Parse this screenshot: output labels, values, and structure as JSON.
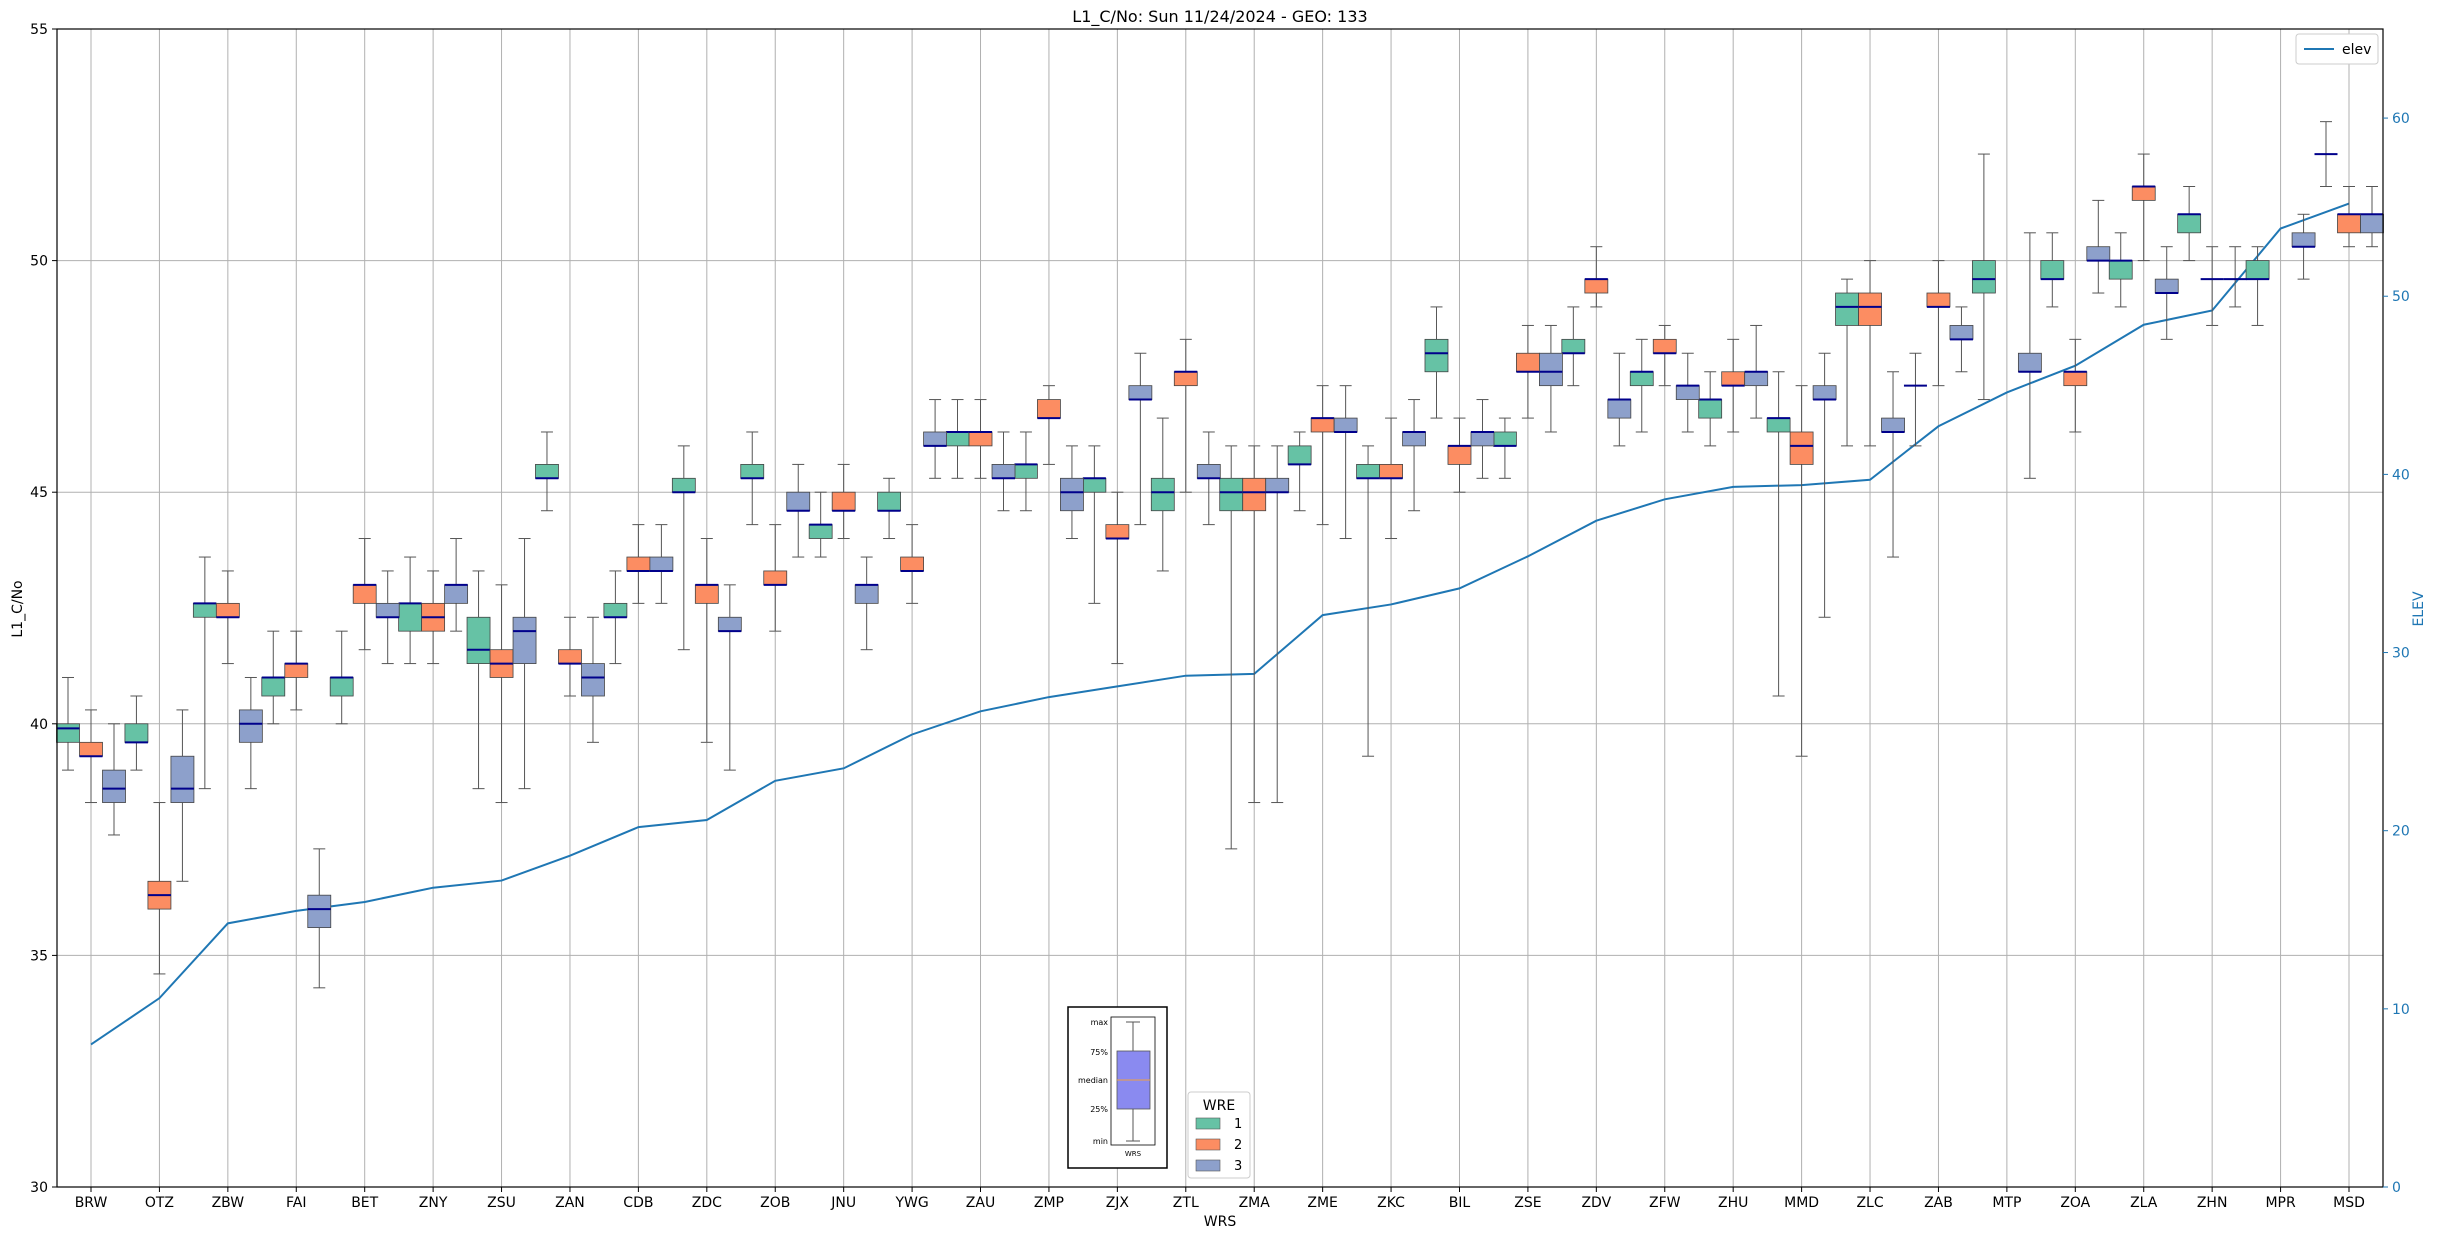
{
  "chart_data": {
    "type": "box",
    "title": "L1_C/No: Sun 11/24/2024 - GEO: 133",
    "xlabel": "WRS",
    "ylabel": "L1_C/No",
    "y2label": "ELEV",
    "ylim": [
      30,
      55
    ],
    "y2lim": [
      0,
      65
    ],
    "yticks": [
      30,
      35,
      40,
      45,
      50,
      55
    ],
    "y2ticks": [
      0,
      10,
      20,
      30,
      40,
      50,
      60
    ],
    "grid": true,
    "categories": [
      "BRW",
      "OTZ",
      "ZBW",
      "FAI",
      "BET",
      "ZNY",
      "ZSU",
      "ZAN",
      "CDB",
      "ZDC",
      "ZOB",
      "JNU",
      "YWG",
      "ZAU",
      "ZMP",
      "ZJX",
      "ZTL",
      "ZMA",
      "ZME",
      "ZKC",
      "BIL",
      "ZSE",
      "ZDV",
      "ZFW",
      "ZHU",
      "MMD",
      "ZLC",
      "ZAB",
      "MTP",
      "ZOA",
      "ZLA",
      "ZHN",
      "MPR",
      "MSD"
    ],
    "legend": {
      "title": "WRE",
      "position": "bottom-center",
      "entries": [
        {
          "label": "1",
          "color": "#66c2a5"
        },
        {
          "label": "2",
          "color": "#fc8d62"
        },
        {
          "label": "3",
          "color": "#8da0cb"
        }
      ]
    },
    "line_legend": {
      "label": "elev",
      "position": "top-right",
      "color": "#1f77b4"
    },
    "box_key": {
      "labels": {
        "max": "max",
        "q3": "75%",
        "median": "median",
        "q1": "25%",
        "min": "min",
        "x": "WRS"
      }
    },
    "series": [
      {
        "name": "1",
        "color": "#66c2a5",
        "boxes": [
          {
            "cat": "BRW",
            "min": 39.0,
            "q1": 39.6,
            "med": 39.9,
            "q3": 40.0,
            "max": 41.0
          },
          {
            "cat": "OTZ",
            "min": 39.0,
            "q1": 39.6,
            "med": 39.6,
            "q3": 40.0,
            "max": 40.6
          },
          {
            "cat": "ZBW",
            "min": 38.6,
            "q1": 42.3,
            "med": 42.6,
            "q3": 42.6,
            "max": 43.6
          },
          {
            "cat": "FAI",
            "min": 40.0,
            "q1": 40.6,
            "med": 41.0,
            "q3": 41.0,
            "max": 42.0
          },
          {
            "cat": "BET",
            "min": 40.0,
            "q1": 40.6,
            "med": 41.0,
            "q3": 41.0,
            "max": 42.0
          },
          {
            "cat": "ZNY",
            "min": 41.3,
            "q1": 42.0,
            "med": 42.6,
            "q3": 42.6,
            "max": 43.6
          },
          {
            "cat": "ZSU",
            "min": 38.6,
            "q1": 41.3,
            "med": 41.6,
            "q3": 42.3,
            "max": 43.3
          },
          {
            "cat": "ZAN",
            "min": 44.6,
            "q1": 45.3,
            "med": 45.3,
            "q3": 45.6,
            "max": 46.3
          },
          {
            "cat": "CDB",
            "min": 41.3,
            "q1": 42.3,
            "med": 42.3,
            "q3": 42.6,
            "max": 43.3
          },
          {
            "cat": "ZDC",
            "min": 41.6,
            "q1": 45.0,
            "med": 45.0,
            "q3": 45.3,
            "max": 46.0
          },
          {
            "cat": "ZOB",
            "min": 44.3,
            "q1": 45.3,
            "med": 45.3,
            "q3": 45.6,
            "max": 46.3
          },
          {
            "cat": "JNU",
            "min": 43.6,
            "q1": 44.0,
            "med": 44.3,
            "q3": 44.3,
            "max": 45.0
          },
          {
            "cat": "YWG",
            "min": 44.0,
            "q1": 44.6,
            "med": 44.6,
            "q3": 45.0,
            "max": 45.3
          },
          {
            "cat": "ZAU",
            "min": 45.3,
            "q1": 46.0,
            "med": 46.3,
            "q3": 46.3,
            "max": 47.0
          },
          {
            "cat": "ZMP",
            "min": 44.6,
            "q1": 45.3,
            "med": 45.6,
            "q3": 45.6,
            "max": 46.3
          },
          {
            "cat": "ZJX",
            "min": 42.6,
            "q1": 45.0,
            "med": 45.3,
            "q3": 45.3,
            "max": 46.0
          },
          {
            "cat": "ZTL",
            "min": 43.3,
            "q1": 44.6,
            "med": 45.0,
            "q3": 45.3,
            "max": 46.6
          },
          {
            "cat": "ZMA",
            "min": 37.3,
            "q1": 44.6,
            "med": 45.0,
            "q3": 45.3,
            "max": 46.0
          },
          {
            "cat": "ZME",
            "min": 44.6,
            "q1": 45.6,
            "med": 45.6,
            "q3": 46.0,
            "max": 46.3
          },
          {
            "cat": "ZKC",
            "min": 39.3,
            "q1": 45.3,
            "med": 45.3,
            "q3": 45.6,
            "max": 46.0
          },
          {
            "cat": "BIL",
            "min": 46.6,
            "q1": 47.6,
            "med": 48.0,
            "q3": 48.3,
            "max": 49.0
          },
          {
            "cat": "ZSE",
            "min": 45.3,
            "q1": 46.0,
            "med": 46.0,
            "q3": 46.3,
            "max": 46.6
          },
          {
            "cat": "ZDV",
            "min": 47.3,
            "q1": 48.0,
            "med": 48.0,
            "q3": 48.3,
            "max": 49.0
          },
          {
            "cat": "ZFW",
            "min": 46.3,
            "q1": 47.3,
            "med": 47.6,
            "q3": 47.6,
            "max": 48.3
          },
          {
            "cat": "ZHU",
            "min": 46.0,
            "q1": 46.6,
            "med": 47.0,
            "q3": 47.0,
            "max": 47.6
          },
          {
            "cat": "MMD",
            "min": 40.6,
            "q1": 46.3,
            "med": 46.6,
            "q3": 46.6,
            "max": 47.6
          },
          {
            "cat": "ZLC",
            "min": 46.0,
            "q1": 48.6,
            "med": 49.0,
            "q3": 49.3,
            "max": 49.6
          },
          {
            "cat": "MTP",
            "min": 47.0,
            "q1": 49.3,
            "med": 49.6,
            "q3": 50.0,
            "max": 52.3
          },
          {
            "cat": "ZOA",
            "min": 49.0,
            "q1": 49.6,
            "med": 49.6,
            "q3": 50.0,
            "max": 50.6
          },
          {
            "cat": "ZLA",
            "min": 49.0,
            "q1": 49.6,
            "med": 50.0,
            "q3": 50.0,
            "max": 50.6
          },
          {
            "cat": "ZHN",
            "min": 50.0,
            "q1": 50.6,
            "med": 51.0,
            "q3": 51.0,
            "max": 51.6
          },
          {
            "cat": "MPR",
            "min": 48.6,
            "q1": 49.6,
            "med": 49.6,
            "q3": 50.0,
            "max": 50.3
          }
        ]
      },
      {
        "name": "2",
        "color": "#fc8d62",
        "boxes": [
          {
            "cat": "BRW",
            "min": 38.3,
            "q1": 39.3,
            "med": 39.3,
            "q3": 39.6,
            "max": 40.3
          },
          {
            "cat": "OTZ",
            "min": 34.6,
            "q1": 36.0,
            "med": 36.3,
            "q3": 36.6,
            "max": 38.3
          },
          {
            "cat": "ZBW",
            "min": 41.3,
            "q1": 42.3,
            "med": 42.3,
            "q3": 42.6,
            "max": 43.3
          },
          {
            "cat": "FAI",
            "min": 40.3,
            "q1": 41.0,
            "med": 41.3,
            "q3": 41.3,
            "max": 42.0
          },
          {
            "cat": "BET",
            "min": 41.6,
            "q1": 42.6,
            "med": 43.0,
            "q3": 43.0,
            "max": 44.0
          },
          {
            "cat": "ZNY",
            "min": 41.3,
            "q1": 42.0,
            "med": 42.3,
            "q3": 42.6,
            "max": 43.3
          },
          {
            "cat": "ZSU",
            "min": 38.3,
            "q1": 41.0,
            "med": 41.3,
            "q3": 41.6,
            "max": 43.0
          },
          {
            "cat": "ZAN",
            "min": 40.6,
            "q1": 41.3,
            "med": 41.3,
            "q3": 41.6,
            "max": 42.3
          },
          {
            "cat": "CDB",
            "min": 42.6,
            "q1": 43.3,
            "med": 43.3,
            "q3": 43.6,
            "max": 44.3
          },
          {
            "cat": "ZDC",
            "min": 39.6,
            "q1": 42.6,
            "med": 43.0,
            "q3": 43.0,
            "max": 44.0
          },
          {
            "cat": "ZOB",
            "min": 42.0,
            "q1": 43.0,
            "med": 43.0,
            "q3": 43.3,
            "max": 44.3
          },
          {
            "cat": "JNU",
            "min": 44.0,
            "q1": 44.6,
            "med": 44.6,
            "q3": 45.0,
            "max": 45.6
          },
          {
            "cat": "YWG",
            "min": 42.6,
            "q1": 43.3,
            "med": 43.3,
            "q3": 43.6,
            "max": 44.3
          },
          {
            "cat": "ZAU",
            "min": 45.3,
            "q1": 46.0,
            "med": 46.3,
            "q3": 46.3,
            "max": 47.0
          },
          {
            "cat": "ZMP",
            "min": 45.6,
            "q1": 46.6,
            "med": 46.6,
            "q3": 47.0,
            "max": 47.3
          },
          {
            "cat": "ZJX",
            "min": 41.3,
            "q1": 44.0,
            "med": 44.0,
            "q3": 44.3,
            "max": 45.0
          },
          {
            "cat": "ZTL",
            "min": 45.0,
            "q1": 47.3,
            "med": 47.6,
            "q3": 47.6,
            "max": 48.3
          },
          {
            "cat": "ZMA",
            "min": 38.3,
            "q1": 44.6,
            "med": 45.0,
            "q3": 45.3,
            "max": 46.0
          },
          {
            "cat": "ZME",
            "min": 44.3,
            "q1": 46.3,
            "med": 46.6,
            "q3": 46.6,
            "max": 47.3
          },
          {
            "cat": "ZKC",
            "min": 44.0,
            "q1": 45.3,
            "med": 45.3,
            "q3": 45.6,
            "max": 46.6
          },
          {
            "cat": "BIL",
            "min": 45.0,
            "q1": 45.6,
            "med": 46.0,
            "q3": 46.0,
            "max": 46.6
          },
          {
            "cat": "ZSE",
            "min": 46.6,
            "q1": 47.6,
            "med": 47.6,
            "q3": 48.0,
            "max": 48.6
          },
          {
            "cat": "ZDV",
            "min": 49.0,
            "q1": 49.3,
            "med": 49.6,
            "q3": 49.6,
            "max": 50.3
          },
          {
            "cat": "ZFW",
            "min": 47.3,
            "q1": 48.0,
            "med": 48.0,
            "q3": 48.3,
            "max": 48.6
          },
          {
            "cat": "ZHU",
            "min": 46.3,
            "q1": 47.3,
            "med": 47.3,
            "q3": 47.6,
            "max": 48.3
          },
          {
            "cat": "MMD",
            "min": 39.3,
            "q1": 45.6,
            "med": 46.0,
            "q3": 46.3,
            "max": 47.3
          },
          {
            "cat": "ZLC",
            "min": 46.0,
            "q1": 48.6,
            "med": 49.0,
            "q3": 49.3,
            "max": 50.0
          },
          {
            "cat": "ZAB",
            "min": 47.3,
            "q1": 49.0,
            "med": 49.0,
            "q3": 49.3,
            "max": 50.0
          },
          {
            "cat": "ZOA",
            "min": 46.3,
            "q1": 47.3,
            "med": 47.6,
            "q3": 47.6,
            "max": 48.3
          },
          {
            "cat": "ZLA",
            "min": 50.0,
            "q1": 51.3,
            "med": 51.6,
            "q3": 51.6,
            "max": 52.3
          },
          {
            "cat": "MSD",
            "min": 50.3,
            "q1": 50.6,
            "med": 51.0,
            "q3": 51.0,
            "max": 51.6
          }
        ]
      },
      {
        "name": "3",
        "color": "#8da0cb",
        "boxes": [
          {
            "cat": "BRW",
            "min": 37.6,
            "q1": 38.3,
            "med": 38.6,
            "q3": 39.0,
            "max": 40.0
          },
          {
            "cat": "OTZ",
            "min": 36.6,
            "q1": 38.3,
            "med": 38.6,
            "q3": 39.3,
            "max": 40.3
          },
          {
            "cat": "ZBW",
            "min": 38.6,
            "q1": 39.6,
            "med": 40.0,
            "q3": 40.3,
            "max": 41.0
          },
          {
            "cat": "FAI",
            "min": 34.3,
            "q1": 35.6,
            "med": 36.0,
            "q3": 36.3,
            "max": 37.3
          },
          {
            "cat": "BET",
            "min": 41.3,
            "q1": 42.3,
            "med": 42.3,
            "q3": 42.6,
            "max": 43.3
          },
          {
            "cat": "ZNY",
            "min": 42.0,
            "q1": 42.6,
            "med": 43.0,
            "q3": 43.0,
            "max": 44.0
          },
          {
            "cat": "ZSU",
            "min": 38.6,
            "q1": 41.3,
            "med": 42.0,
            "q3": 42.3,
            "max": 44.0
          },
          {
            "cat": "ZAN",
            "min": 39.6,
            "q1": 40.6,
            "med": 41.0,
            "q3": 41.3,
            "max": 42.3
          },
          {
            "cat": "CDB",
            "min": 42.6,
            "q1": 43.3,
            "med": 43.3,
            "q3": 43.6,
            "max": 44.3
          },
          {
            "cat": "ZDC",
            "min": 39.0,
            "q1": 42.0,
            "med": 42.0,
            "q3": 42.3,
            "max": 43.0
          },
          {
            "cat": "ZOB",
            "min": 43.6,
            "q1": 44.6,
            "med": 44.6,
            "q3": 45.0,
            "max": 45.6
          },
          {
            "cat": "JNU",
            "min": 41.6,
            "q1": 42.6,
            "med": 43.0,
            "q3": 43.0,
            "max": 43.6
          },
          {
            "cat": "YWG",
            "min": 45.3,
            "q1": 46.0,
            "med": 46.0,
            "q3": 46.3,
            "max": 47.0
          },
          {
            "cat": "ZAU",
            "min": 44.6,
            "q1": 45.3,
            "med": 45.3,
            "q3": 45.6,
            "max": 46.3
          },
          {
            "cat": "ZMP",
            "min": 44.0,
            "q1": 44.6,
            "med": 45.0,
            "q3": 45.3,
            "max": 46.0
          },
          {
            "cat": "ZJX",
            "min": 44.3,
            "q1": 47.0,
            "med": 47.0,
            "q3": 47.3,
            "max": 48.0
          },
          {
            "cat": "ZTL",
            "min": 44.3,
            "q1": 45.3,
            "med": 45.3,
            "q3": 45.6,
            "max": 46.3
          },
          {
            "cat": "ZMA",
            "min": 38.3,
            "q1": 45.0,
            "med": 45.0,
            "q3": 45.3,
            "max": 46.0
          },
          {
            "cat": "ZME",
            "min": 44.0,
            "q1": 46.3,
            "med": 46.3,
            "q3": 46.6,
            "max": 47.3
          },
          {
            "cat": "ZKC",
            "min": 44.6,
            "q1": 46.0,
            "med": 46.3,
            "q3": 46.3,
            "max": 47.0
          },
          {
            "cat": "BIL",
            "min": 45.3,
            "q1": 46.0,
            "med": 46.3,
            "q3": 46.3,
            "max": 47.0
          },
          {
            "cat": "ZSE",
            "min": 46.3,
            "q1": 47.3,
            "med": 47.6,
            "q3": 48.0,
            "max": 48.6
          },
          {
            "cat": "ZDV",
            "min": 46.0,
            "q1": 46.6,
            "med": 47.0,
            "q3": 47.0,
            "max": 48.0
          },
          {
            "cat": "ZFW",
            "min": 46.3,
            "q1": 47.0,
            "med": 47.3,
            "q3": 47.3,
            "max": 48.0
          },
          {
            "cat": "ZHU",
            "min": 46.6,
            "q1": 47.3,
            "med": 47.6,
            "q3": 47.6,
            "max": 48.6
          },
          {
            "cat": "MMD",
            "min": 42.3,
            "q1": 47.0,
            "med": 47.0,
            "q3": 47.3,
            "max": 48.0
          },
          {
            "cat": "ZLC",
            "min": 43.6,
            "q1": 46.3,
            "med": 46.3,
            "q3": 46.6,
            "max": 47.6
          },
          {
            "cat": "ZAB",
            "min": 47.6,
            "q1": 48.3,
            "med": 48.3,
            "q3": 48.6,
            "max": 49.0
          },
          {
            "cat": "MTP",
            "min": 45.3,
            "q1": 47.6,
            "med": 47.6,
            "q3": 48.0,
            "max": 50.6
          },
          {
            "cat": "ZOA",
            "min": 49.3,
            "q1": 50.0,
            "med": 50.0,
            "q3": 50.3,
            "max": 51.3
          },
          {
            "cat": "ZLA",
            "min": 48.3,
            "q1": 49.3,
            "med": 49.3,
            "q3": 49.6,
            "max": 50.3
          },
          {
            "cat": "MPR",
            "min": 49.6,
            "q1": 50.3,
            "med": 50.3,
            "q3": 50.6,
            "max": 51.0
          },
          {
            "cat": "MSD",
            "min": 50.3,
            "q1": 50.6,
            "med": 51.0,
            "q3": 51.0,
            "max": 51.6
          }
        ]
      }
    ],
    "single_markers": [
      {
        "cat": "ZAB",
        "series": "1",
        "value": 47.3,
        "min": 46.0,
        "max": 48.0
      },
      {
        "cat": "ZHN",
        "series": "2",
        "value": 49.6,
        "min": 48.6,
        "max": 50.3
      },
      {
        "cat": "ZHN",
        "series": "3",
        "value": 49.6,
        "min": 49.0,
        "max": 50.3
      },
      {
        "cat": "MSD",
        "series": "1",
        "value": 52.3,
        "min": 51.6,
        "max": 53.0
      }
    ],
    "elev_line": {
      "name": "elev",
      "axis": "right",
      "values": [
        8.0,
        10.6,
        14.8,
        15.5,
        16.0,
        16.8,
        17.2,
        18.6,
        20.2,
        20.6,
        22.8,
        23.5,
        25.4,
        26.7,
        27.5,
        28.1,
        28.7,
        28.8,
        32.1,
        32.7,
        33.6,
        35.4,
        37.4,
        38.6,
        39.3,
        39.4,
        39.7,
        42.7,
        44.6,
        46.1,
        48.4,
        49.2,
        53.8,
        55.2
      ]
    }
  }
}
